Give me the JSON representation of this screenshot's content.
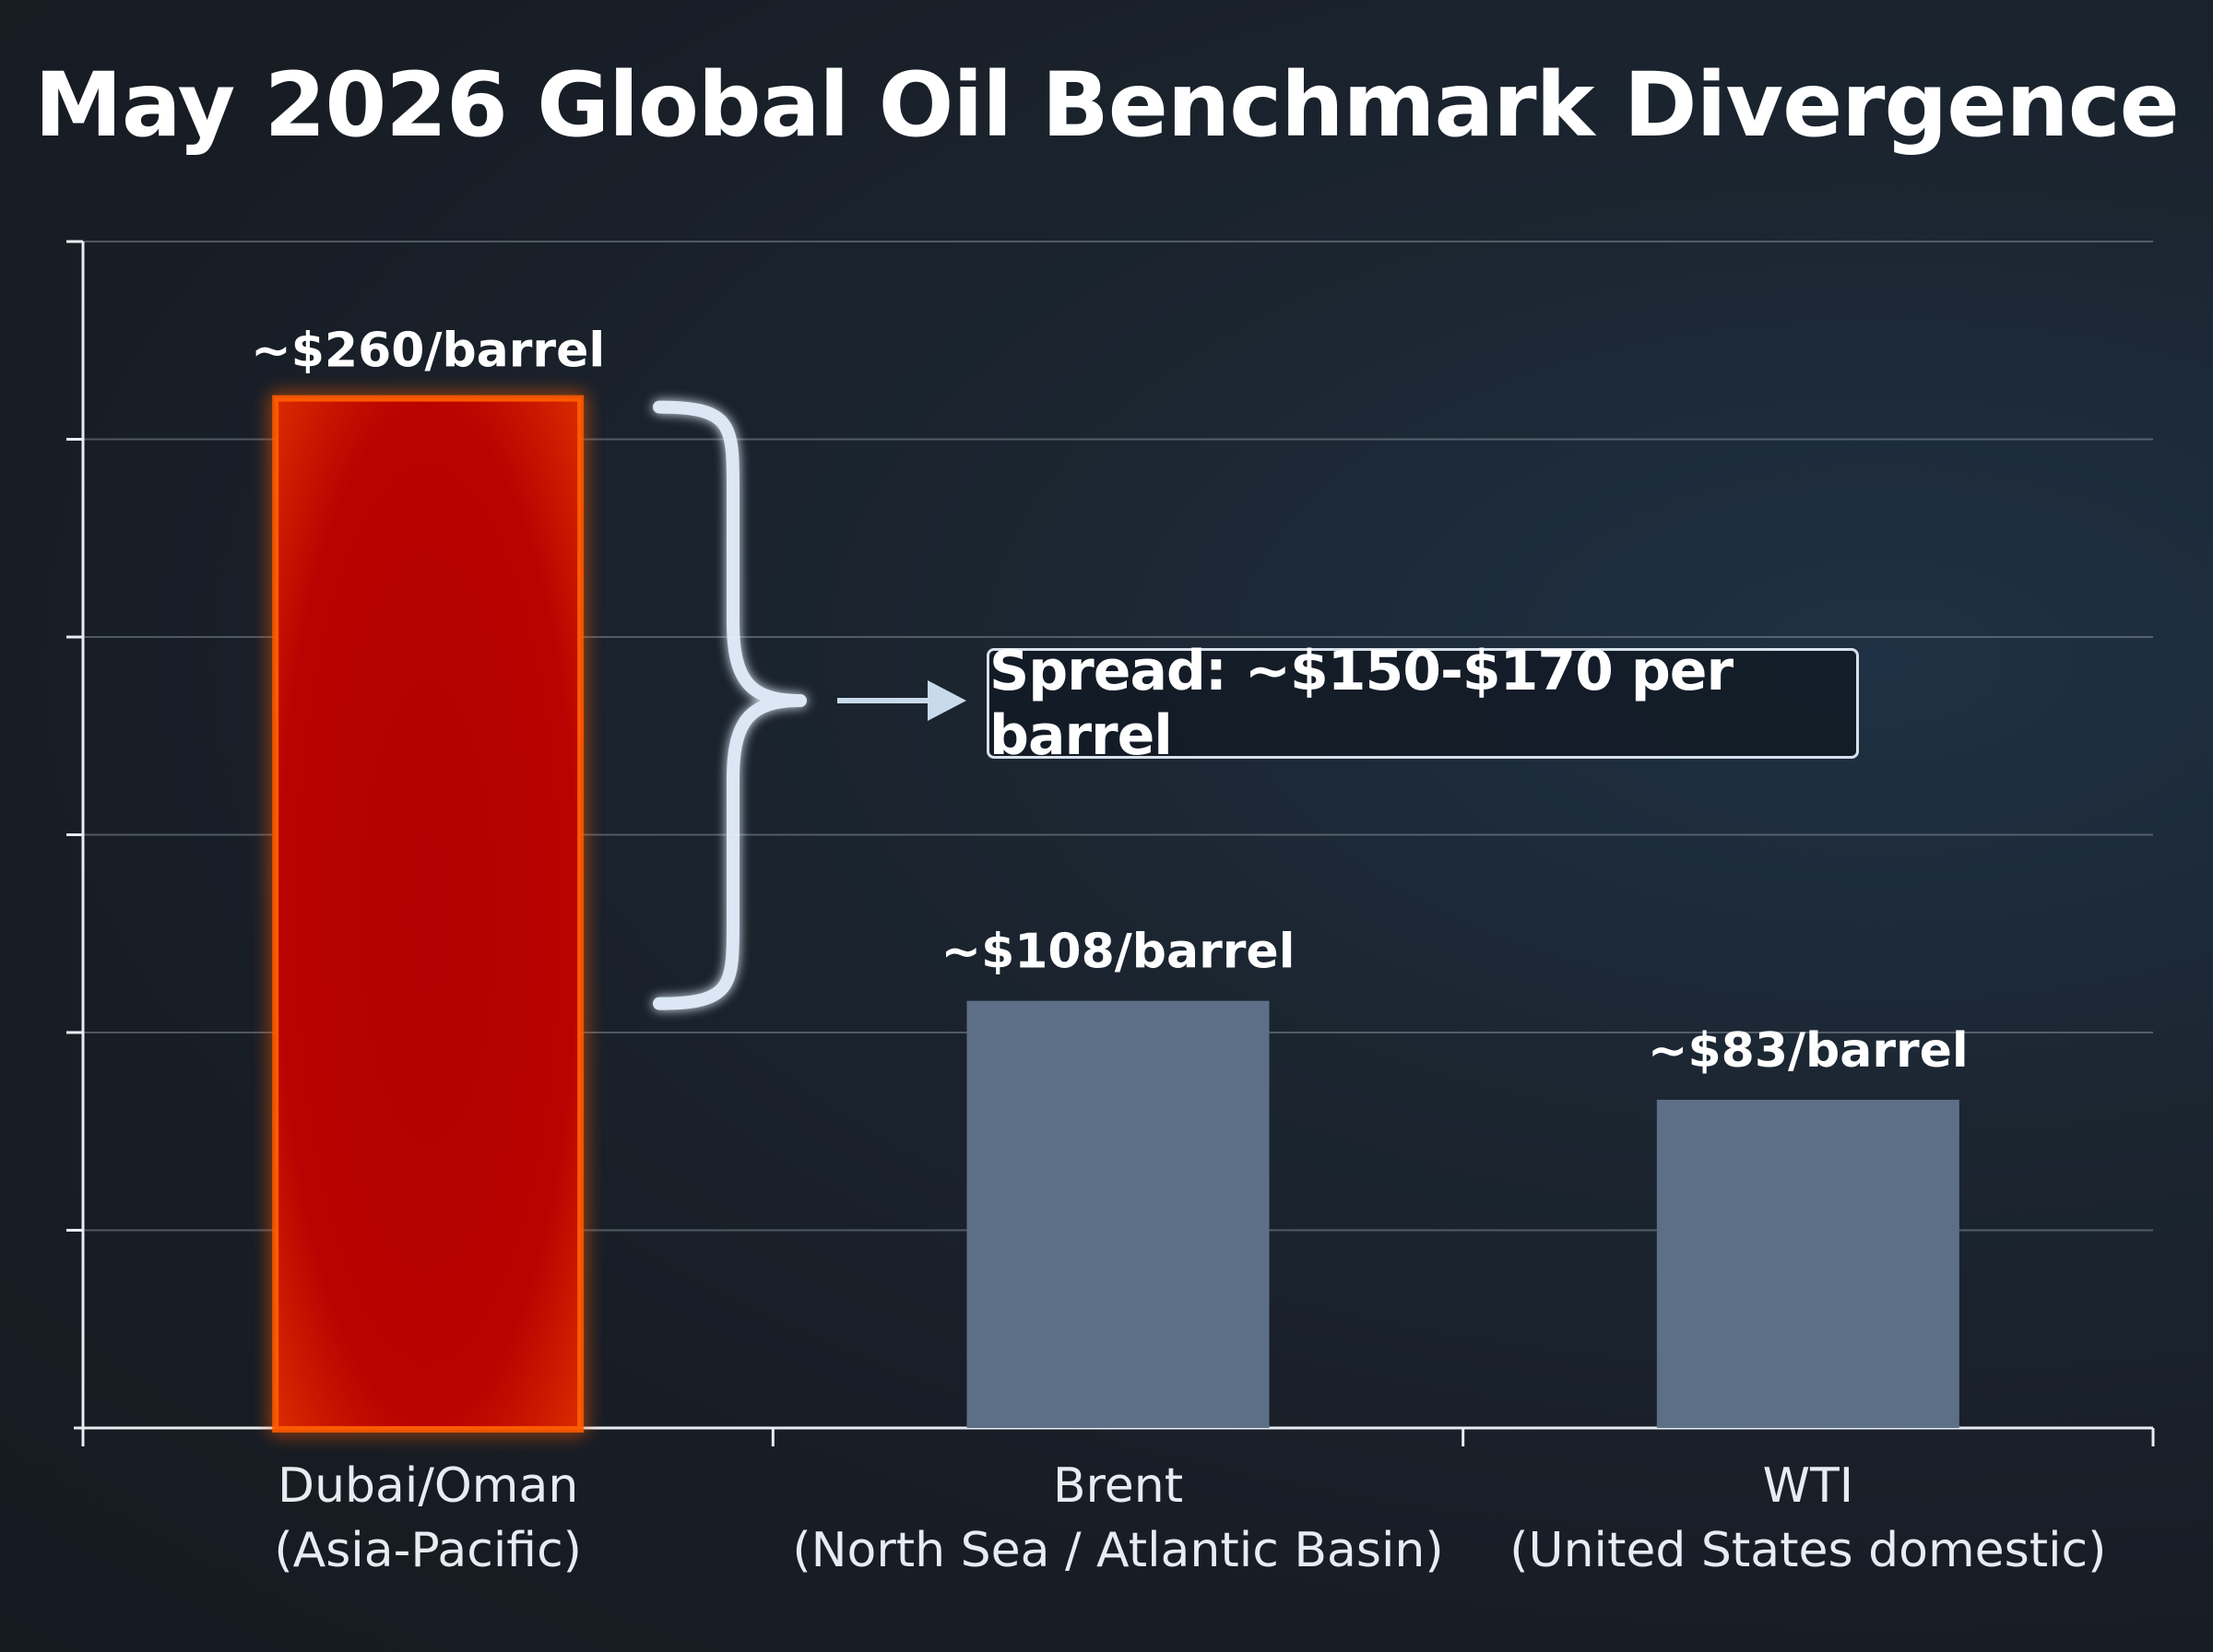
{
  "chart_data": {
    "type": "bar",
    "title": "May 2026 Global Oil Benchmark Divergence",
    "categories": [
      [
        "Dubai/Oman",
        "(Asia-Pacific)"
      ],
      [
        "Brent",
        "(North Sea / Atlantic Basin)"
      ],
      [
        "WTI",
        "(United States domestic)"
      ]
    ],
    "series": [
      {
        "values": [
          260,
          108,
          83
        ],
        "data_labels": [
          "~$260/barrel",
          "~$108/barrel",
          "~$83/barrel"
        ],
        "colors": [
          "#b80000",
          "#5d6f87",
          "#5d6f87"
        ]
      }
    ],
    "highlight_color": "#ff5a00",
    "ylim": [
      0,
      300
    ],
    "grid": true,
    "annotation": {
      "text": "Spread: ~$150-$170 per barrel",
      "bracket_color": "#e6f2ff"
    },
    "xlabel": "",
    "ylabel": ""
  }
}
